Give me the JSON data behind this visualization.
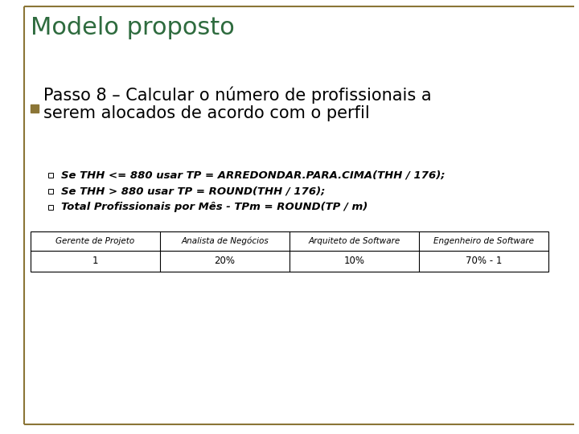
{
  "title": "Modelo proposto",
  "title_color": "#2E6B3E",
  "background_color": "#FFFFFF",
  "border_color": "#8B7536",
  "bullet_color": "#8B7536",
  "bullet_text_line1": "Passo 8 – Calcular o número de profissionais a",
  "bullet_text_line2": "serem alocados de acordo com o perfil",
  "bullet_fontsize": 15,
  "sub_bullets": [
    "Se THH <= 880 usar TP = ARREDONDAR.PARA.CIMA(THH / 176);",
    "Se THH > 880 usar TP = ROUND(THH / 176);",
    "Total Profissionais por Mês - TPm = ROUND(TP / m)"
  ],
  "sub_bullet_fontsize": 9.5,
  "table_headers": [
    "Gerente de Projeto",
    "Analista de Negócios",
    "Arquiteto de Software",
    "Engenheiro de Software"
  ],
  "table_values": [
    "1",
    "20%",
    "10%",
    "70% - 1"
  ],
  "table_header_fontsize": 7.5,
  "table_value_fontsize": 8.5,
  "title_fontsize": 22
}
